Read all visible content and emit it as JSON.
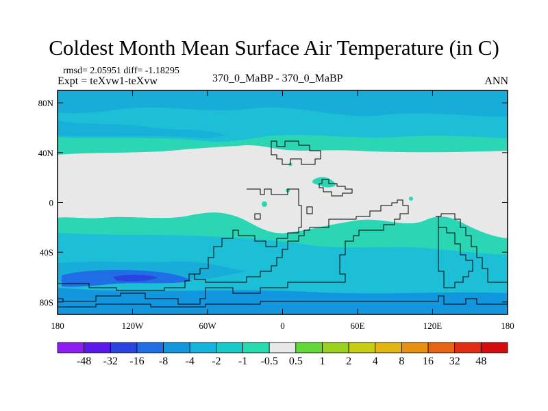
{
  "chart_data": {
    "type": "heatmap",
    "title": "Coldest Month Mean Surface Air Temperature (in C)",
    "stats_line": "rmsd= 2.05951 diff= -1.18295",
    "expt_line": "Expt = teXvw1-teXvw",
    "center_label": "370_0_MaBP - 370_0_MaBP",
    "season_label": "ANN",
    "x_axis": {
      "ticks": [
        "180",
        "120W",
        "60W",
        "0",
        "60E",
        "120E",
        "180"
      ],
      "range": [
        -180,
        180
      ]
    },
    "y_axis": {
      "ticks": [
        "80N",
        "40N",
        "0",
        "40S",
        "80S"
      ],
      "range": [
        -90,
        90
      ]
    },
    "colorbar": {
      "levels": [
        "-48",
        "-32",
        "-16",
        "-8",
        "-4",
        "-2",
        "-1",
        "-0.5",
        "0.5",
        "1",
        "2",
        "4",
        "8",
        "16",
        "32",
        "48"
      ],
      "colors": [
        "#8f1cf0",
        "#5a18ea",
        "#2a45df",
        "#1f6ee6",
        "#1296de",
        "#14b4de",
        "#17c9c9",
        "#26dcae",
        "#e8e8e8",
        "#62d938",
        "#9bd21f",
        "#c7cd12",
        "#e2b512",
        "#e89012",
        "#e86312",
        "#e02d12",
        "#d60b0b"
      ]
    },
    "field_bands": [
      {
        "lat_from": 90,
        "lat_to": 72,
        "level": "-2"
      },
      {
        "lat_from": 72,
        "lat_to": 60,
        "level": "-1"
      },
      {
        "lat_from": 60,
        "lat_to": 38,
        "level": "-0.5"
      },
      {
        "lat_from": 38,
        "lat_to": -14,
        "level": "-0.5 to 0.5"
      },
      {
        "lat_from": -14,
        "lat_to": -32,
        "level": "-1"
      },
      {
        "lat_from": -32,
        "lat_to": -58,
        "level": "-2"
      },
      {
        "lat_from": -58,
        "lat_to": -90,
        "level": "-4"
      }
    ]
  }
}
